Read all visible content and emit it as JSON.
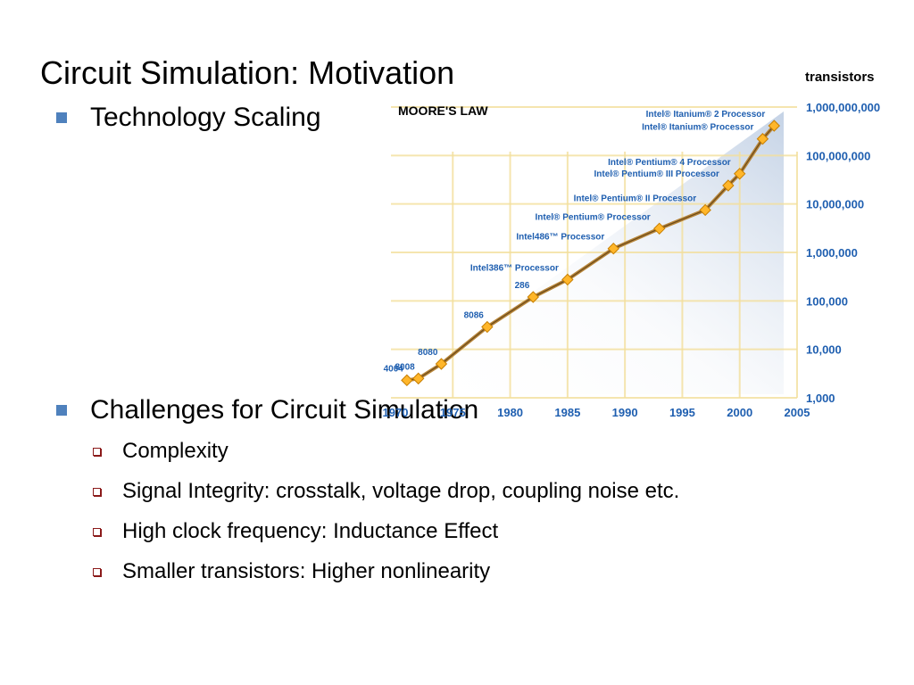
{
  "slide": {
    "title": "Circuit Simulation: Motivation",
    "bullets": [
      {
        "text": "Technology Scaling"
      },
      {
        "text": "Challenges for Circuit Simulation",
        "subitems": [
          "Complexity",
          "Signal Integrity: crosstalk, voltage drop, coupling noise etc.",
          "High clock frequency: Inductance Effect",
          "Smaller transistors: Higher nonlinearity"
        ]
      }
    ]
  },
  "colors": {
    "bullet": "#4f81bd",
    "sub_bullet": "#8b1a1a",
    "chart_blue": "#1f5fb0",
    "line": "#b8863a",
    "marker": "#ffb62a",
    "grid": "#f3df9c"
  },
  "chart_data": {
    "type": "line",
    "title": "MOORE'S LAW",
    "ylabel": "transistors",
    "yscale": "log",
    "xlim": [
      1970,
      2005
    ],
    "ylim": [
      1000,
      1000000000
    ],
    "x_ticks": [
      "1970",
      "1975",
      "1980",
      "1985",
      "1990",
      "1995",
      "2000",
      "2005"
    ],
    "y_ticks": [
      "1,000,000,000",
      "100,000,000",
      "10,000,000",
      "1,000,000",
      "100,000",
      "10,000",
      "1,000"
    ],
    "grid": true,
    "points": [
      {
        "label": "4004",
        "x": 1971,
        "y": 2300
      },
      {
        "label": "8008",
        "x": 1972,
        "y": 2500
      },
      {
        "label": "8080",
        "x": 1974,
        "y": 5000
      },
      {
        "label": "8086",
        "x": 1978,
        "y": 29000
      },
      {
        "label": "286",
        "x": 1982,
        "y": 120000
      },
      {
        "label": "Intel386™ Processor",
        "x": 1985,
        "y": 275000
      },
      {
        "label": "Intel486™ Processor",
        "x": 1989,
        "y": 1200000
      },
      {
        "label": "Intel® Pentium® Processor",
        "x": 1993,
        "y": 3100000
      },
      {
        "label": "Intel® Pentium® II Processor",
        "x": 1997,
        "y": 7500000
      },
      {
        "label": "Intel® Pentium® III Processor",
        "x": 1999,
        "y": 24000000
      },
      {
        "label": "Intel® Pentium® 4 Processor",
        "x": 2000,
        "y": 42000000
      },
      {
        "label": "Intel® Itanium® Processor",
        "x": 2002,
        "y": 220000000
      },
      {
        "label": "Intel® Itanium® 2 Processor",
        "x": 2003,
        "y": 410000000
      }
    ]
  }
}
